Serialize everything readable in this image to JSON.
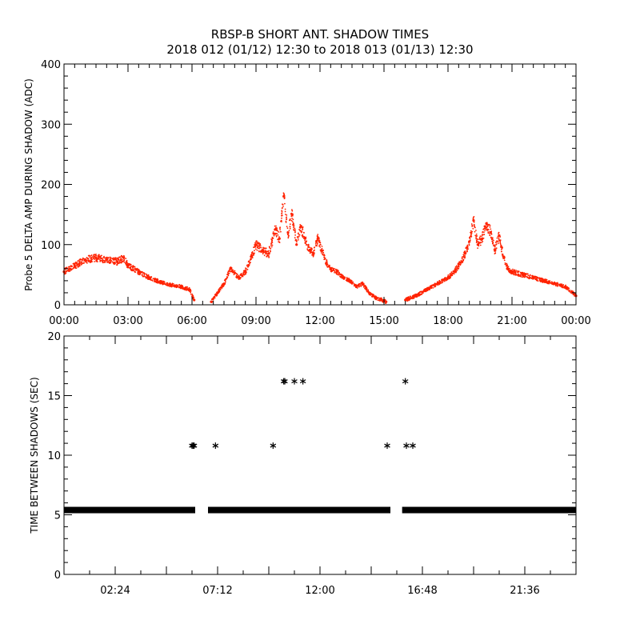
{
  "title_line1": "RBSP-B SHORT ANT. SHADOW TIMES",
  "title_line2": "2018 012 (01/12) 12:30 to 2018 013 (01/13) 12:30",
  "colors": {
    "top_series": "#ff2200",
    "bottom_series": "#000000",
    "axes": "#000000",
    "background": "#ffffff"
  },
  "chart_data": [
    {
      "type": "scatter",
      "ylabel": "Probe 5 DELTA AMP DURING SHADOW (ADC)",
      "xlabel": "",
      "xlim_hours": [
        0,
        24
      ],
      "ylim": [
        0,
        400
      ],
      "x_tick_labels": [
        "00:00",
        "03:00",
        "06:00",
        "09:00",
        "12:00",
        "15:00",
        "18:00",
        "21:00",
        "00:00"
      ],
      "y_ticks": [
        0,
        100,
        200,
        300,
        400
      ],
      "marker": "dot",
      "series": [
        {
          "x_hours": [
            0.0,
            0.5,
            1.0,
            1.5,
            2.0,
            2.5,
            2.8,
            3.0,
            3.5,
            4.0,
            4.5,
            5.0,
            5.5,
            5.9,
            6.1,
            6.9,
            7.2,
            7.5,
            7.8,
            8.2,
            8.5,
            8.8,
            9.0,
            9.3,
            9.6,
            9.9,
            10.1,
            10.3,
            10.5,
            10.7,
            10.9,
            11.1,
            11.3,
            11.5,
            11.7,
            11.9,
            12.1,
            12.3,
            12.5,
            12.8,
            13.1,
            13.4,
            13.7,
            14.0,
            14.3,
            14.6,
            14.9,
            15.1,
            16.0,
            16.5,
            17.0,
            17.5,
            18.0,
            18.3,
            18.6,
            18.8,
            19.0,
            19.2,
            19.4,
            19.6,
            19.8,
            20.0,
            20.2,
            20.4,
            20.6,
            20.8,
            21.0,
            21.5,
            22.0,
            22.5,
            23.0,
            23.5,
            24.0
          ],
          "y_adc": [
            55,
            65,
            75,
            78,
            75,
            72,
            78,
            65,
            55,
            45,
            38,
            33,
            30,
            25,
            8,
            5,
            20,
            35,
            60,
            45,
            55,
            80,
            100,
            90,
            85,
            125,
            110,
            180,
            120,
            150,
            100,
            130,
            110,
            90,
            85,
            110,
            90,
            70,
            60,
            55,
            45,
            40,
            30,
            35,
            20,
            12,
            8,
            5,
            8,
            15,
            25,
            35,
            45,
            55,
            70,
            85,
            105,
            140,
            100,
            110,
            135,
            120,
            90,
            115,
            80,
            60,
            55,
            50,
            45,
            40,
            35,
            30,
            15
          ]
        }
      ]
    },
    {
      "type": "scatter",
      "ylabel": "TIME BETWEEN SHADOWS (SEC)",
      "xlabel": "",
      "xlim_hours": [
        0,
        24
      ],
      "ylim": [
        0,
        20
      ],
      "x_tick_labels": [
        "02:24",
        "07:12",
        "12:00",
        "16:48",
        "21:36"
      ],
      "y_ticks": [
        0,
        5,
        10,
        15,
        20
      ],
      "marker": "asterisk",
      "bands": [
        {
          "x_start_hours": 0.0,
          "x_end_hours": 6.15,
          "y_sec": 5.4
        },
        {
          "x_start_hours": 6.75,
          "x_end_hours": 15.3,
          "y_sec": 5.4
        },
        {
          "x_start_hours": 15.85,
          "x_end_hours": 24.0,
          "y_sec": 5.4
        }
      ],
      "series": [
        {
          "x_hours": [
            6.0,
            6.05,
            6.1,
            7.1,
            9.8,
            10.3,
            10.35,
            10.8,
            11.2,
            15.15,
            16.0,
            16.05,
            16.35
          ],
          "y_sec": [
            10.8,
            10.8,
            10.8,
            10.8,
            10.8,
            16.2,
            16.2,
            16.2,
            16.2,
            10.8,
            16.2,
            10.8,
            10.8
          ]
        }
      ]
    }
  ]
}
